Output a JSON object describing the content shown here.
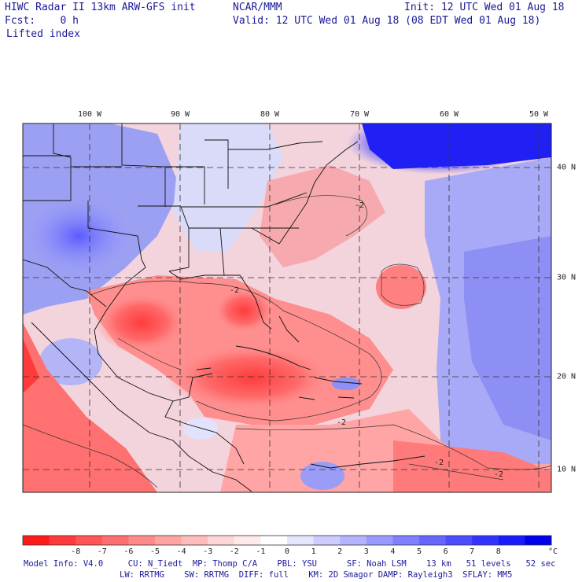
{
  "header": {
    "title": "HIWC Radar II 13km ARW-GFS init",
    "org": "NCAR/MMM",
    "init": "Init: 12 UTC Wed 01 Aug 18",
    "fcst": "Fcst:    0 h",
    "valid": "Valid: 12 UTC Wed 01 Aug 18 (08 EDT Wed 01 Aug 18)",
    "field": "Lifted index"
  },
  "map": {
    "lon_labels": [
      "100 W",
      "90 W",
      "80 W",
      "70 W",
      "60 W",
      "50 W"
    ],
    "lon_values": [
      -100,
      -90,
      -80,
      -70,
      -60,
      -50
    ],
    "lat_labels": [
      "40 N",
      "30 N",
      "20 N",
      "10 N"
    ],
    "lat_values": [
      40,
      30,
      20,
      10
    ],
    "lon_range": [
      -107.5,
      -48.5
    ],
    "lat_range": [
      8.3,
      44.6
    ],
    "contour_labels": [
      "-2",
      "-2",
      "-2",
      "-2",
      "-2"
    ],
    "grid_style": "dashed"
  },
  "colorbar": {
    "labels": [
      "-8",
      "-7",
      "-6",
      "-5",
      "-4",
      "-3",
      "-2",
      "-1",
      "0",
      "1",
      "2",
      "3",
      "4",
      "5",
      "6",
      "7",
      "8"
    ],
    "unit": "°C",
    "colors": [
      "#ff1a1a",
      "#ff3a3a",
      "#ff5555",
      "#ff6f6f",
      "#ff8a8a",
      "#ffa3a3",
      "#ffbcbc",
      "#ffd6d6",
      "#ffeaea",
      "#ffffff",
      "#e6e6ff",
      "#ccccff",
      "#b3b3ff",
      "#9999ff",
      "#8080ff",
      "#6666ff",
      "#4d4dff",
      "#3333ff",
      "#1a1aff",
      "#0000f0"
    ]
  },
  "footer": {
    "line1": "Model Info: V4.0     CU: N_Tiedt  MP: Thomp C/A    PBL: YSU      SF: Noah LSM    13 km   51 levels   52 sec",
    "line2": "LW: RRTMG    SW: RRTMG  DIFF: full    KM: 2D Smagor DAMP: Rayleigh3  SFLAY: MM5"
  }
}
